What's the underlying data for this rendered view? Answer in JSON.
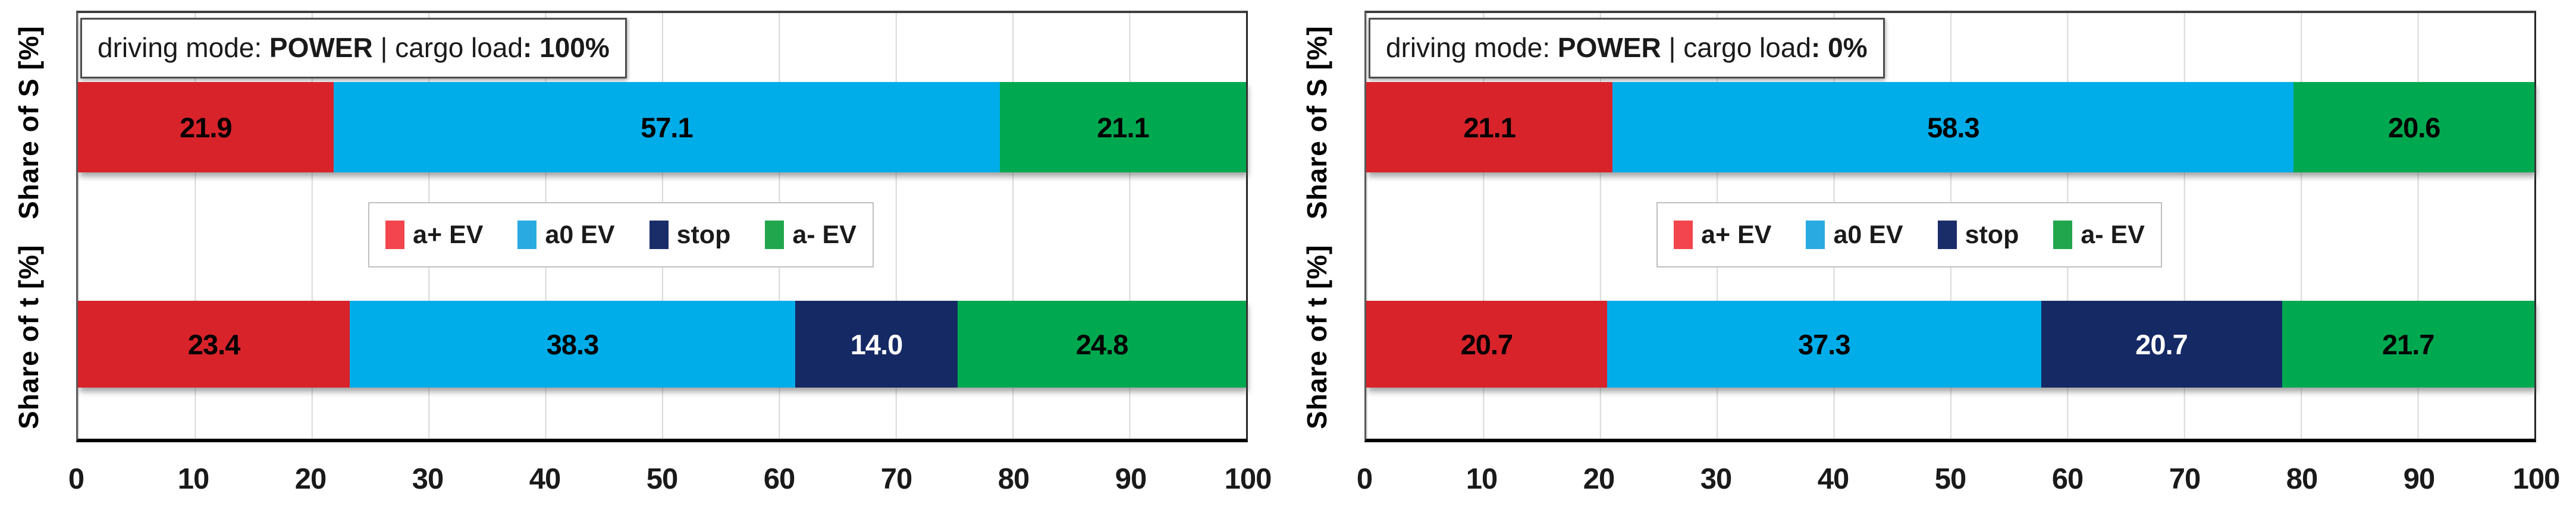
{
  "ylabels": {
    "top": "Share of S [%]",
    "bottom": "Share of t [%]"
  },
  "axis": {
    "min": 0,
    "max": 100,
    "ticks": [
      "0",
      "10",
      "20",
      "30",
      "40",
      "50",
      "60",
      "70",
      "80",
      "90",
      "100"
    ]
  },
  "legend": {
    "items": [
      {
        "label": "a+ EV",
        "color": "#f2454d"
      },
      {
        "label": "a0 EV",
        "color": "#29abe2"
      },
      {
        "label": "stop",
        "color": "#1b2d69"
      },
      {
        "label": "a- EV",
        "color": "#21a64d"
      }
    ]
  },
  "charts": [
    {
      "header": [
        "driving mode: ",
        "POWER",
        " | cargo load",
        ": 100%"
      ]
    },
    {
      "header": [
        "driving mode: ",
        "POWER",
        " | cargo load",
        ": 0%"
      ]
    }
  ],
  "styles": {
    "bar_colors": {
      "a+ EV": "#d8232b",
      "a0 EV": "#00ade9",
      "stop": "#152a64",
      "a- EV": "#00a950"
    },
    "value_text_colors": {
      "stop": "#ffffff"
    },
    "grid_color": "#d9d9d9",
    "axis_line_color": "#000000"
  },
  "chart_data": [
    {
      "type": "bar",
      "stacked": true,
      "orientation": "horizontal",
      "title": "driving mode: POWER | cargo load: 100%",
      "categories": [
        "Share of S [%]",
        "Share of t [%]"
      ],
      "series": [
        {
          "name": "a+ EV",
          "values": [
            21.9,
            23.4
          ]
        },
        {
          "name": "a0 EV",
          "values": [
            57.1,
            38.3
          ]
        },
        {
          "name": "stop",
          "values": [
            0,
            14.0
          ]
        },
        {
          "name": "a- EV",
          "values": [
            21.1,
            24.8
          ]
        }
      ],
      "xlim": [
        0,
        100
      ],
      "xticks": [
        0,
        10,
        20,
        30,
        40,
        50,
        60,
        70,
        80,
        90,
        100
      ],
      "grid": true,
      "legend_position": "center between bars"
    },
    {
      "type": "bar",
      "stacked": true,
      "orientation": "horizontal",
      "title": "driving mode: POWER | cargo load: 0%",
      "categories": [
        "Share of S [%]",
        "Share of t [%]"
      ],
      "series": [
        {
          "name": "a+ EV",
          "values": [
            21.1,
            20.7
          ]
        },
        {
          "name": "a0 EV",
          "values": [
            58.3,
            37.3
          ]
        },
        {
          "name": "stop",
          "values": [
            0,
            20.7
          ]
        },
        {
          "name": "a- EV",
          "values": [
            20.6,
            21.7
          ]
        }
      ],
      "xlim": [
        0,
        100
      ],
      "xticks": [
        0,
        10,
        20,
        30,
        40,
        50,
        60,
        70,
        80,
        90,
        100
      ],
      "grid": true,
      "legend_position": "center between bars"
    }
  ]
}
